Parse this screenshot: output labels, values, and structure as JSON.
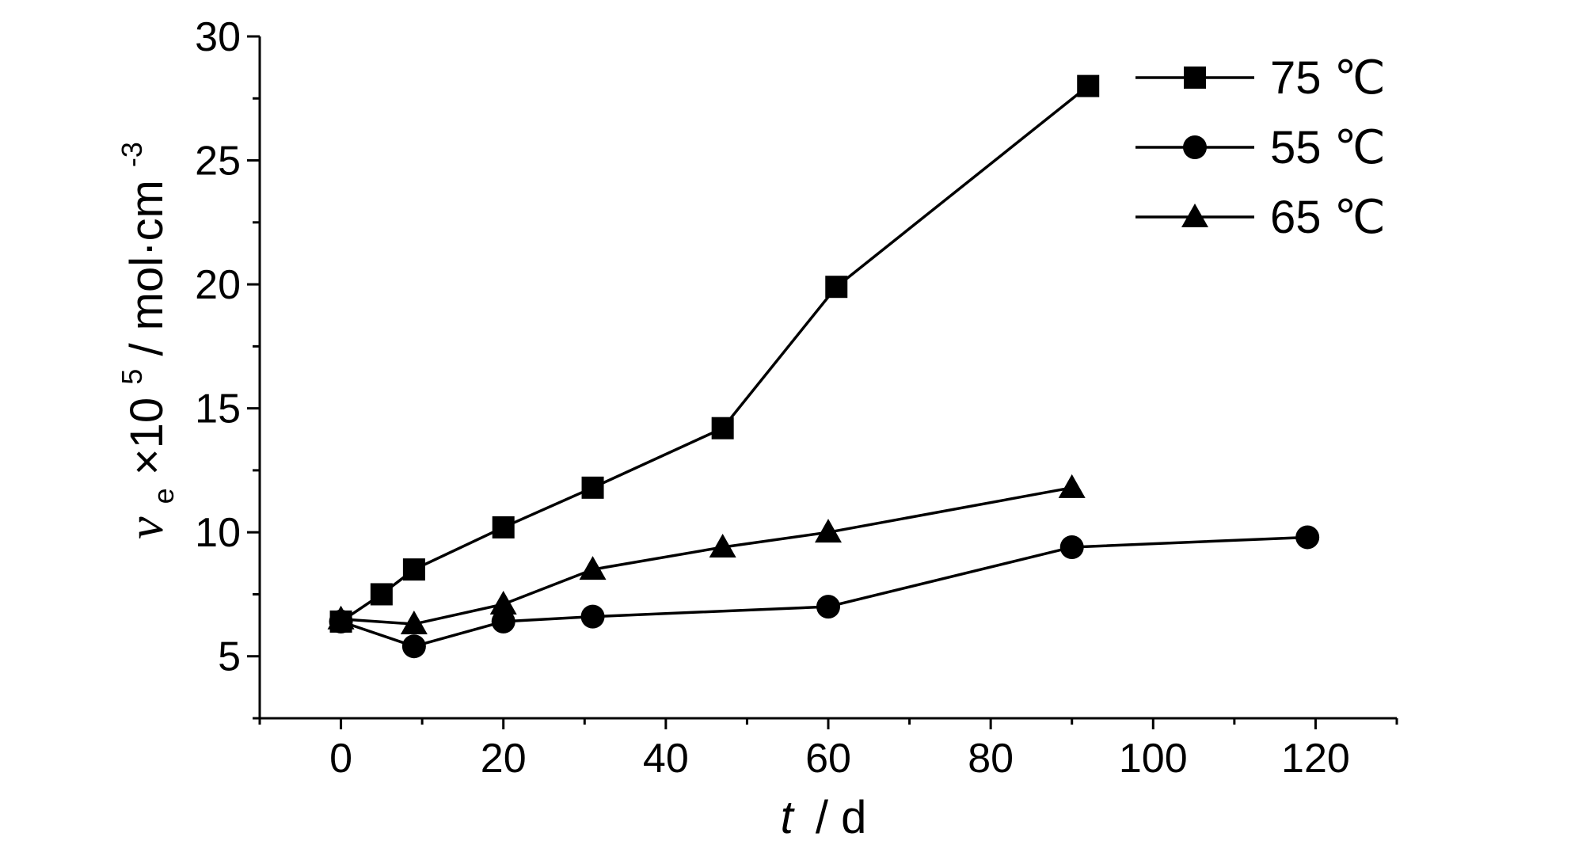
{
  "chart_data": {
    "type": "line",
    "xlabel": {
      "var": "t",
      "unit": "/ d"
    },
    "ylabel": {
      "var": "ν",
      "sub": "e",
      "times": "×10",
      "exp": "5",
      "unit": " / mol·cm",
      "unit_exp": "-3"
    },
    "xlim": [
      -10,
      130
    ],
    "ylim": [
      2.5,
      30
    ],
    "x_ticks": [
      0,
      20,
      40,
      60,
      80,
      100,
      120
    ],
    "y_ticks": [
      5,
      10,
      15,
      20,
      25,
      30
    ],
    "legend_position": "top-right",
    "series": [
      {
        "name": "75 ℃",
        "marker": "square",
        "x": [
          0,
          5,
          9,
          20,
          31,
          47,
          61,
          92
        ],
        "y": [
          6.4,
          7.5,
          8.5,
          10.2,
          11.8,
          14.2,
          19.9,
          28.0
        ]
      },
      {
        "name": "55 ℃",
        "marker": "circle",
        "x": [
          0,
          9,
          20,
          31,
          60,
          90,
          119
        ],
        "y": [
          6.4,
          5.4,
          6.4,
          6.6,
          7.0,
          9.4,
          9.8
        ]
      },
      {
        "name": "65 ℃",
        "marker": "triangle",
        "x": [
          0,
          9,
          20,
          31,
          47,
          60,
          90
        ],
        "y": [
          6.5,
          6.3,
          7.1,
          8.5,
          9.4,
          10.0,
          11.8
        ]
      }
    ]
  }
}
